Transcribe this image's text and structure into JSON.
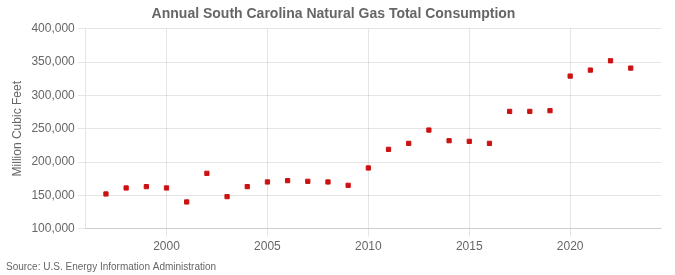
{
  "chart_data": {
    "type": "scatter",
    "title": "Annual South Carolina Natural Gas Total Consumption",
    "ylabel": "Million Cubic Feet",
    "source": "Source: U.S. Energy Information Administration",
    "x": [
      1997,
      1998,
      1999,
      2000,
      2001,
      2002,
      2003,
      2004,
      2005,
      2006,
      2007,
      2008,
      2009,
      2010,
      2011,
      2012,
      2013,
      2014,
      2015,
      2016,
      2017,
      2018,
      2019,
      2020,
      2021,
      2022,
      2023
    ],
    "values": [
      152000,
      161000,
      163000,
      161000,
      140000,
      183000,
      148000,
      163000,
      170000,
      172000,
      171000,
      170000,
      165000,
      191000,
      219000,
      228000,
      248000,
      232000,
      231000,
      228000,
      276000,
      276000,
      277000,
      329000,
      338000,
      352000,
      341000
    ],
    "color": "#cc1111",
    "marker": "square",
    "xlim": [
      1996,
      2024.5
    ],
    "xticks": [
      2000,
      2005,
      2010,
      2015,
      2020
    ],
    "ylim": [
      100000,
      400000
    ],
    "yticks": [
      {
        "value": 100000,
        "label": "100,000"
      },
      {
        "value": 150000,
        "label": "150,000"
      },
      {
        "value": 200000,
        "label": "200,000"
      },
      {
        "value": 250000,
        "label": "250,000"
      },
      {
        "value": 300000,
        "label": "300,000"
      },
      {
        "value": 350000,
        "label": "350,000"
      },
      {
        "value": 400000,
        "label": "400,000"
      }
    ],
    "grid": true
  }
}
